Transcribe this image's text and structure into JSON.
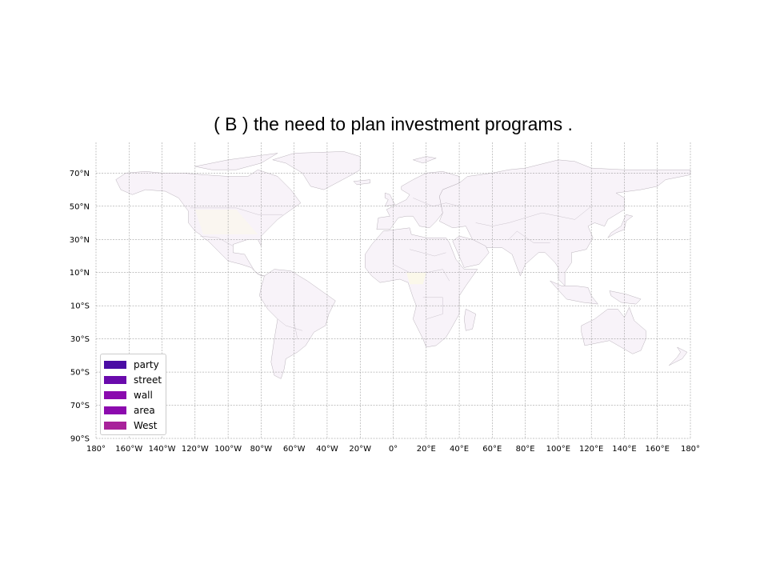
{
  "title": "( B ) the need to plan investment programs .",
  "map": {
    "projection": "equirectangular",
    "lon_range": [
      -180,
      180
    ],
    "lat_range": [
      -90,
      90
    ],
    "x_tick_labels": [
      "180°",
      "160°W",
      "140°W",
      "120°W",
      "100°W",
      "80°W",
      "60°W",
      "40°W",
      "20°W",
      "0°",
      "20°E",
      "40°E",
      "60°E",
      "80°E",
      "100°E",
      "120°E",
      "140°E",
      "160°E",
      "180°"
    ],
    "x_tick_values": [
      -180,
      -160,
      -140,
      -120,
      -100,
      -80,
      -60,
      -40,
      -20,
      0,
      20,
      40,
      60,
      80,
      100,
      120,
      140,
      160,
      180
    ],
    "y_tick_labels": [
      "70°N",
      "50°N",
      "30°N",
      "10°N",
      "10°S",
      "30°S",
      "50°S",
      "70°S",
      "90°S"
    ],
    "y_tick_values": [
      70,
      50,
      30,
      10,
      -10,
      -30,
      -50,
      -70,
      -90
    ],
    "grid": true,
    "land_color": "#f8f3f9",
    "highlight_color": "#fbf8ea"
  },
  "legend": {
    "position": "lower-left",
    "items": [
      {
        "label": "party",
        "color": "#4a0ca4"
      },
      {
        "label": "street",
        "color": "#6a0aac"
      },
      {
        "label": "wall",
        "color": "#8a0aae"
      },
      {
        "label": "area",
        "color": "#8c0aae"
      },
      {
        "label": "West",
        "color": "#a8229a"
      }
    ]
  }
}
